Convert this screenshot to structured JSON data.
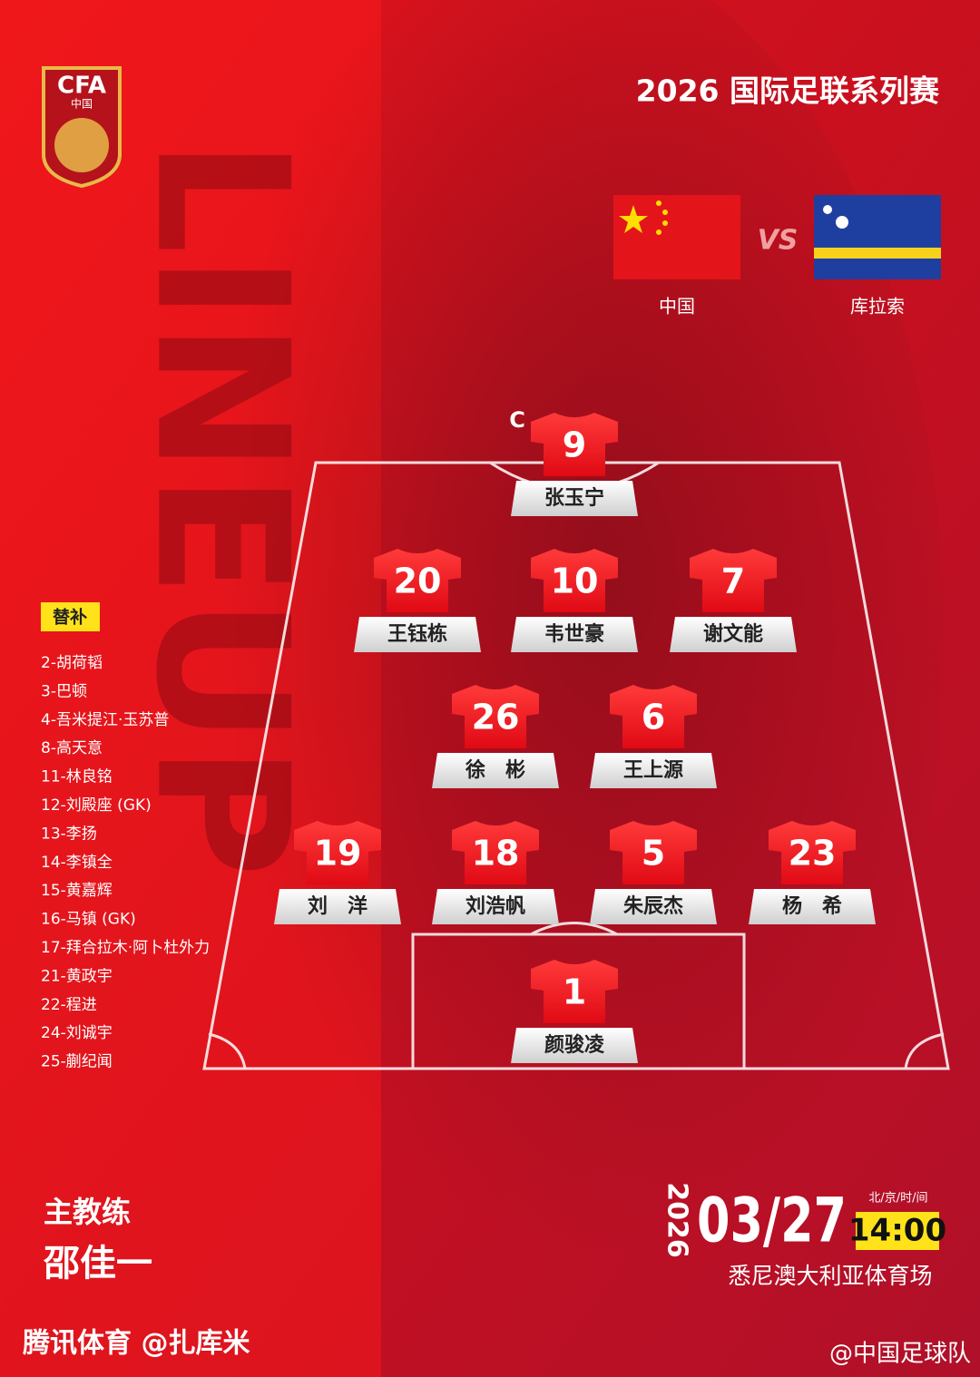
{
  "logo": {
    "text": "CFA",
    "subtext": "中国"
  },
  "title": "2026 国际足联系列赛",
  "match": {
    "home": "中国",
    "vs": "VS",
    "away": "库拉索"
  },
  "background_text": "LINEUP",
  "lineup": {
    "captain_mark": "C",
    "players": [
      {
        "number": 9,
        "name": "张玉宁"
      },
      {
        "number": 20,
        "name": "王钰栋"
      },
      {
        "number": 10,
        "name": "韦世豪"
      },
      {
        "number": 7,
        "name": "谢文能"
      },
      {
        "number": 26,
        "name": "徐　彬"
      },
      {
        "number": 6,
        "name": "王上源"
      },
      {
        "number": 19,
        "name": "刘　洋"
      },
      {
        "number": 18,
        "name": "刘浩帆"
      },
      {
        "number": 5,
        "name": "朱辰杰"
      },
      {
        "number": 23,
        "name": "杨　希"
      },
      {
        "number": 1,
        "name": "颜骏凌"
      }
    ]
  },
  "substitutes": {
    "label": "替补",
    "players": [
      "2-胡荷韬",
      "3-巴顿",
      "4-吾米提江·玉苏普",
      "8-高天意",
      "11-林良铭",
      "12-刘殿座 (GK)",
      "13-李扬",
      "14-李镇全",
      "15-黄嘉辉",
      "16-马镇 (GK)",
      "17-拜合拉木·阿卜杜外力",
      "21-黄政宇",
      "22-程进",
      "24-刘诚宇",
      "25-蒯纪闻"
    ]
  },
  "coach": {
    "label": "主教练",
    "name": "邵佳一"
  },
  "date": {
    "year": "2026",
    "day": "03/27",
    "time_label": "北/京/时/间",
    "time": "14:00",
    "venue": "悉尼澳大利亚体育场"
  },
  "watermarks": [
    "腾讯体育 @扎库米",
    "@中国足球队"
  ]
}
